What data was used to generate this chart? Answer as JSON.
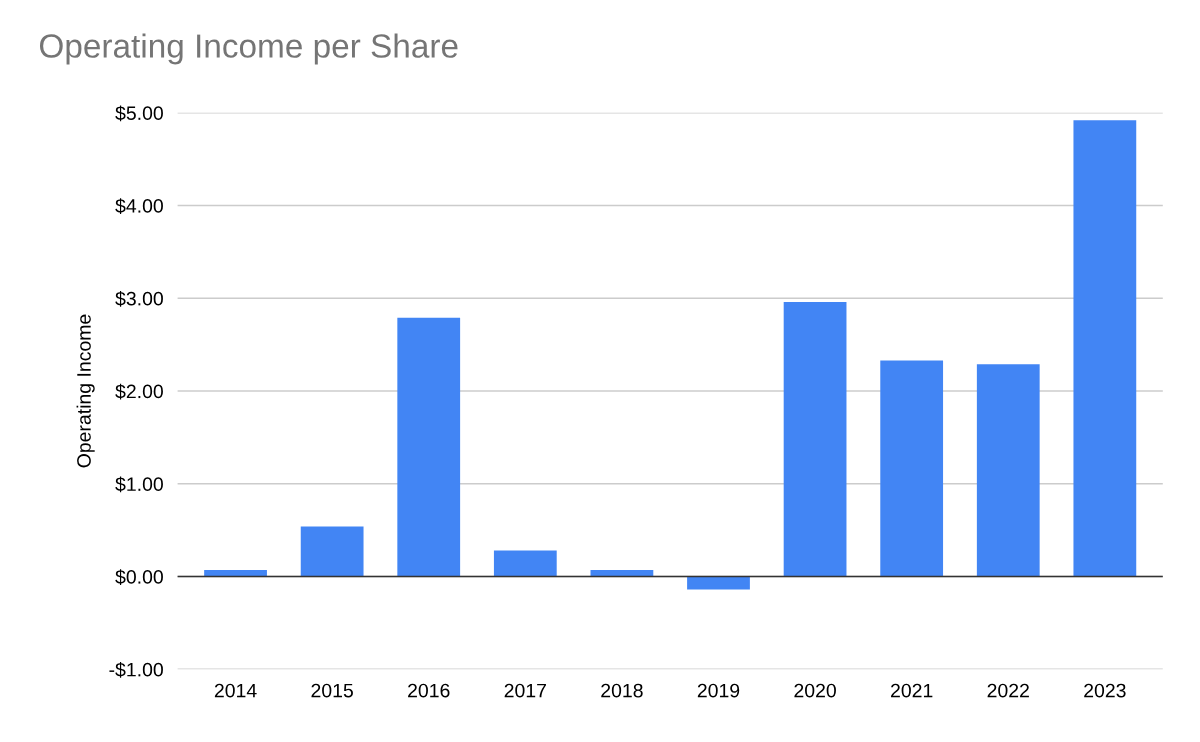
{
  "chart_data": {
    "type": "bar",
    "title": "Operating Income per Share",
    "ylabel": "Operating Income",
    "categories": [
      "2014",
      "2015",
      "2016",
      "2017",
      "2018",
      "2019",
      "2020",
      "2021",
      "2022",
      "2023"
    ],
    "values": [
      0.07,
      0.54,
      2.79,
      0.28,
      0.07,
      -0.14,
      2.96,
      2.33,
      2.29,
      4.92
    ],
    "color": "#4285f4",
    "ylim": [
      -1,
      5
    ],
    "yticks": [
      {
        "value": -1,
        "label": "-$1.00"
      },
      {
        "value": 0,
        "label": "$0.00"
      },
      {
        "value": 1,
        "label": "$1.00"
      },
      {
        "value": 2,
        "label": "$2.00"
      },
      {
        "value": 3,
        "label": "$3.00"
      },
      {
        "value": 4,
        "label": "$4.00"
      },
      {
        "value": 5,
        "label": "$5.00"
      }
    ],
    "grid": "y",
    "legend": false
  }
}
